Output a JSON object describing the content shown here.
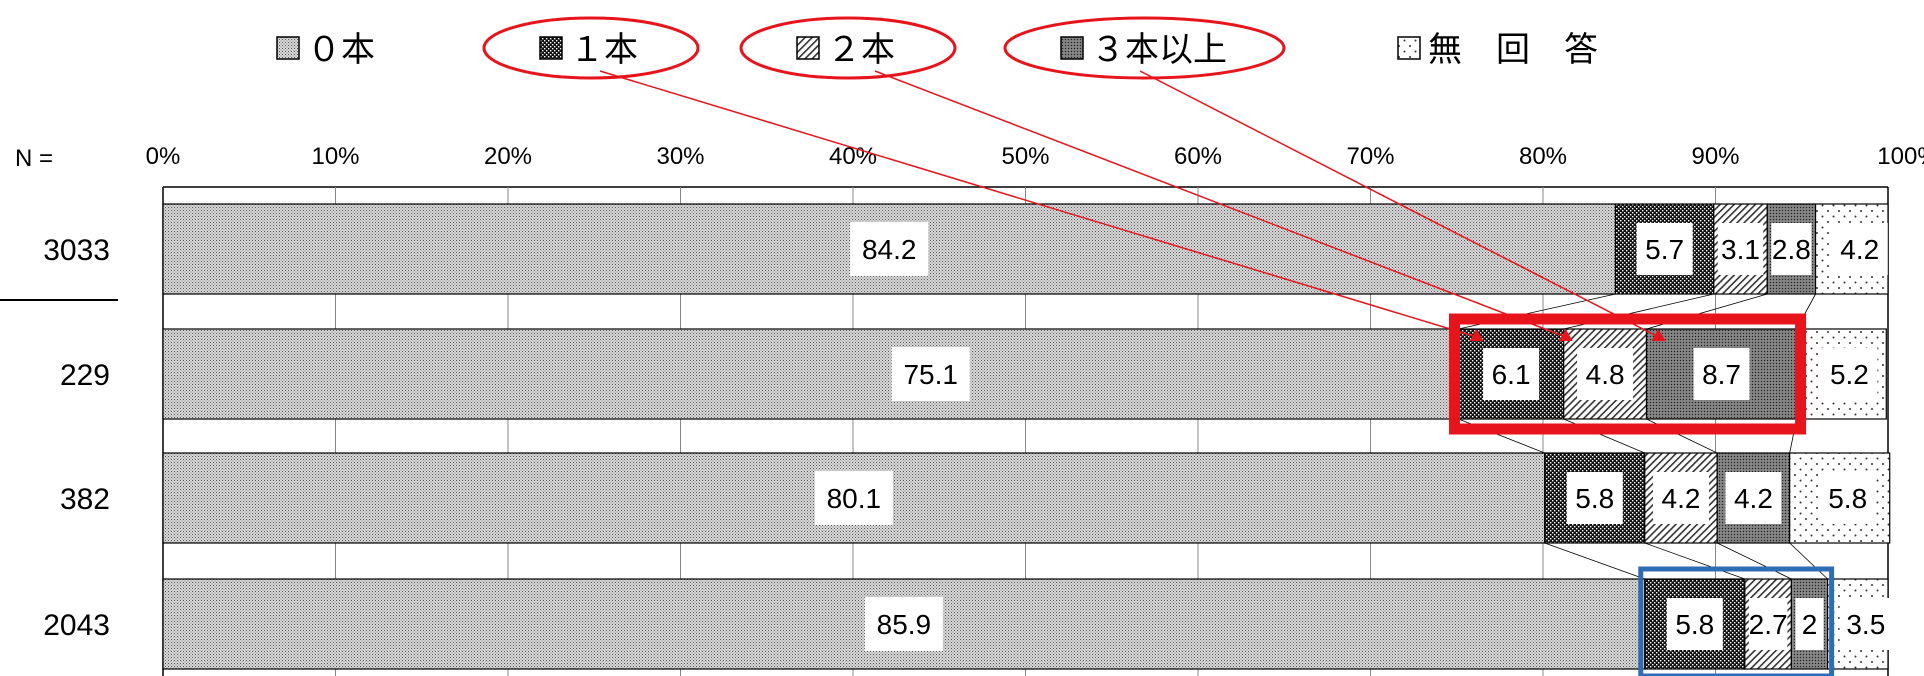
{
  "chart_data": {
    "type": "bar",
    "orientation": "horizontal",
    "stacked": "percent",
    "n_label": "N =",
    "categories": [
      "3033",
      "229",
      "382",
      "2043"
    ],
    "series": [
      {
        "name": "０本",
        "values": [
          84.2,
          75.1,
          80.1,
          85.9
        ],
        "pattern": "fine-dots"
      },
      {
        "name": "１本",
        "values": [
          5.7,
          6.1,
          5.8,
          5.8
        ],
        "pattern": "black-check"
      },
      {
        "name": "２本",
        "values": [
          3.1,
          4.8,
          4.2,
          2.7
        ],
        "pattern": "diagonal"
      },
      {
        "name": "３本以上",
        "values": [
          2.8,
          8.7,
          4.2,
          2.1
        ],
        "pattern": "dark-dots"
      },
      {
        "name": "無　回　答",
        "values": [
          4.2,
          5.2,
          5.8,
          3.5
        ],
        "pattern": "sparse-dots"
      }
    ],
    "data_labels": [
      [
        "84.2",
        "5.7",
        "3.1",
        "2.8",
        "4.2"
      ],
      [
        "75.1",
        "6.1",
        "4.8",
        "8.7",
        "5.2"
      ],
      [
        "80.1",
        "5.8",
        "4.2",
        "4.2",
        "5.8"
      ],
      [
        "85.9",
        "5.8",
        "2.7",
        "2",
        "3.5"
      ]
    ],
    "x_ticks": [
      "0%",
      "10%",
      "20%",
      "30%",
      "40%",
      "50%",
      "60%",
      "70%",
      "80%",
      "90%",
      "100%"
    ],
    "xlim": [
      0,
      100
    ],
    "legend_position": "top",
    "legend_highlighted": [
      "１本",
      "２本",
      "３本以上"
    ],
    "highlight_boxes": [
      {
        "row": "229",
        "from_series": "１本",
        "to_series": "３本以上",
        "color": "#e8141c"
      },
      {
        "row": "2043",
        "from_series": "１本",
        "to_series": "３本以上",
        "color": "#2e6db4"
      }
    ],
    "grid": true,
    "colors": {
      "red": "#e8141c",
      "blue": "#2e6db4",
      "black": "#000000"
    }
  }
}
